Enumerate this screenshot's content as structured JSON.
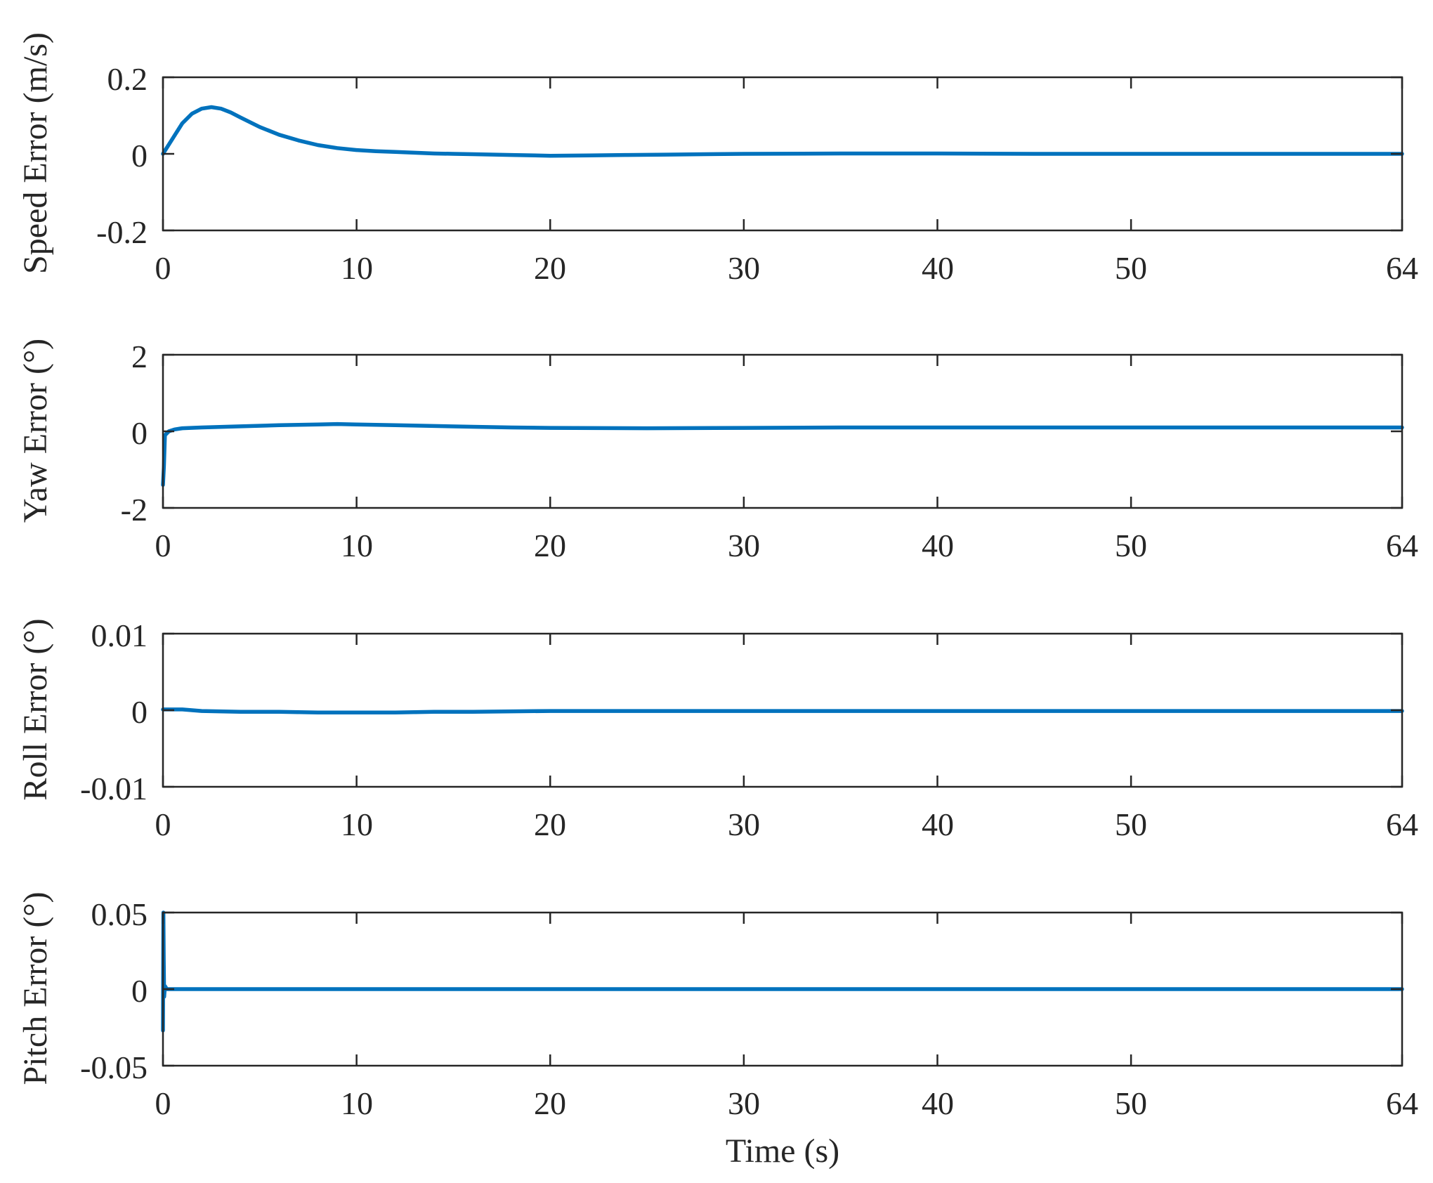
{
  "chart_data": [
    {
      "type": "line",
      "xlabel": "",
      "ylabel": "Speed Error (m/s)",
      "xlim": [
        0,
        64
      ],
      "ylim": [
        -0.2,
        0.2
      ],
      "xticks": [
        "0",
        "10",
        "20",
        "30",
        "40",
        "50",
        "64"
      ],
      "yticks": [
        "-0.2",
        "0",
        "0.2"
      ],
      "grid": false,
      "color": "#0072BD",
      "series": [
        {
          "x": [
            0,
            0.5,
            1,
            1.5,
            2,
            2.5,
            3,
            3.5,
            4,
            5,
            6,
            7,
            8,
            9,
            10,
            11,
            12,
            13,
            14,
            15,
            16,
            18,
            20,
            22,
            24,
            26,
            28,
            30,
            35,
            40,
            45,
            50,
            55,
            60,
            64
          ],
          "y": [
            0,
            0.04,
            0.08,
            0.105,
            0.118,
            0.122,
            0.118,
            0.108,
            0.095,
            0.07,
            0.05,
            0.035,
            0.023,
            0.015,
            0.01,
            0.007,
            0.005,
            0.003,
            0.001,
            0,
            -0.001,
            -0.003,
            -0.005,
            -0.004,
            -0.003,
            -0.002,
            -0.001,
            0,
            0.001,
            0.001,
            0,
            0,
            0,
            0,
            0
          ]
        }
      ]
    },
    {
      "type": "line",
      "xlabel": "",
      "ylabel": "Yaw Error (°)",
      "xlim": [
        0,
        64
      ],
      "ylim": [
        -2,
        2
      ],
      "xticks": [
        "0",
        "10",
        "20",
        "30",
        "40",
        "50",
        "64"
      ],
      "yticks": [
        "-2",
        "0",
        "2"
      ],
      "grid": false,
      "color": "#0072BD",
      "series": [
        {
          "x": [
            0,
            0.05,
            0.1,
            0.3,
            0.6,
            1,
            2,
            4,
            6,
            8,
            9,
            10,
            12,
            14,
            16,
            18,
            20,
            25,
            30,
            35,
            40,
            45,
            50,
            55,
            60,
            64
          ],
          "y": [
            -1.4,
            -0.9,
            -0.1,
            0,
            0.05,
            0.08,
            0.1,
            0.13,
            0.16,
            0.18,
            0.19,
            0.18,
            0.16,
            0.14,
            0.12,
            0.1,
            0.09,
            0.08,
            0.09,
            0.1,
            0.1,
            0.1,
            0.1,
            0.1,
            0.1,
            0.1
          ]
        }
      ]
    },
    {
      "type": "line",
      "xlabel": "",
      "ylabel": "Roll Error (°)",
      "xlim": [
        0,
        64
      ],
      "ylim": [
        -0.01,
        0.01
      ],
      "xticks": [
        "0",
        "10",
        "20",
        "30",
        "40",
        "50",
        "64"
      ],
      "yticks": [
        "-0.01",
        "0",
        "0.01"
      ],
      "grid": false,
      "color": "#0072BD",
      "series": [
        {
          "x": [
            0,
            1,
            2,
            4,
            6,
            8,
            10,
            12,
            14,
            16,
            20,
            25,
            30,
            40,
            50,
            60,
            64
          ],
          "y": [
            0.0001,
            0.0001,
            -0.0001,
            -0.0002,
            -0.0002,
            -0.0003,
            -0.0003,
            -0.0003,
            -0.0002,
            -0.0002,
            -0.0001,
            -0.0001,
            -0.0001,
            -0.0001,
            -0.0001,
            -0.0001,
            -0.0001
          ]
        }
      ]
    },
    {
      "type": "line",
      "xlabel": "Time (s)",
      "ylabel": "Pitch Error (°)",
      "xlim": [
        0,
        64
      ],
      "ylim": [
        -0.05,
        0.05
      ],
      "xticks": [
        "0",
        "10",
        "20",
        "30",
        "40",
        "50",
        "64"
      ],
      "yticks": [
        "-0.05",
        "0",
        "0.05"
      ],
      "grid": false,
      "color": "#0072BD",
      "series": [
        {
          "x": [
            0,
            0.02,
            0.04,
            0.06,
            0.1,
            0.2,
            0.5,
            1,
            5,
            10,
            20,
            30,
            40,
            50,
            60,
            64
          ],
          "y": [
            -0.027,
            0.05,
            0.02,
            -0.005,
            0.002,
            0,
            0,
            0,
            0,
            0,
            0,
            0,
            0,
            0,
            0,
            0
          ]
        }
      ]
    }
  ]
}
